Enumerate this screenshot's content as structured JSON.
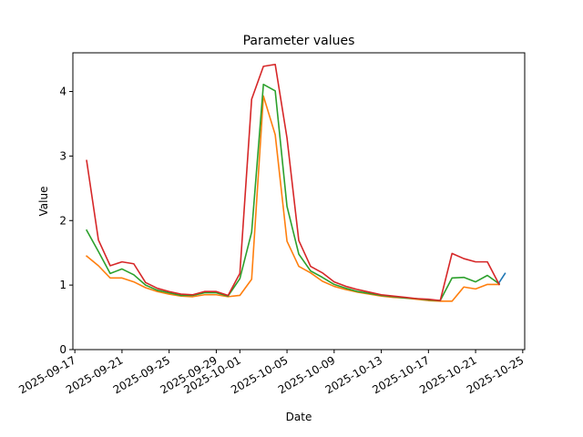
{
  "chart_data": {
    "type": "line",
    "title": "Parameter values",
    "xlabel": "Date",
    "ylabel": "Value",
    "ylim": [
      0,
      4.6
    ],
    "xlim": [
      "2025-09-16T20:00",
      "2025-10-25T04:00"
    ],
    "yticks": [
      0,
      1,
      2,
      3,
      4
    ],
    "xticks": [
      "2025-09-17",
      "2025-09-21",
      "2025-09-25",
      "2025-09-29",
      "2025-10-01",
      "2025-10-05",
      "2025-10-09",
      "2025-10-13",
      "2025-10-17",
      "2025-10-21",
      "2025-10-25"
    ],
    "grid": false,
    "legend": false,
    "series": [
      {
        "color": "#1f77b4",
        "x": [
          "2025-10-23",
          "2025-10-23T12:00"
        ],
        "y": [
          1.04,
          1.18
        ]
      },
      {
        "color": "#ff7f0e",
        "x": [
          "2025-09-18",
          "2025-09-19",
          "2025-09-20",
          "2025-09-21",
          "2025-09-22",
          "2025-09-23",
          "2025-09-24",
          "2025-09-25",
          "2025-09-26",
          "2025-09-27",
          "2025-09-28",
          "2025-09-29",
          "2025-09-30",
          "2025-10-01",
          "2025-10-02",
          "2025-10-03",
          "2025-10-04",
          "2025-10-05",
          "2025-10-06",
          "2025-10-07",
          "2025-10-08",
          "2025-10-09",
          "2025-10-10",
          "2025-10-11",
          "2025-10-12",
          "2025-10-13",
          "2025-10-14",
          "2025-10-15",
          "2025-10-16",
          "2025-10-17",
          "2025-10-18",
          "2025-10-19",
          "2025-10-20",
          "2025-10-21",
          "2025-10-22",
          "2025-10-23"
        ],
        "y": [
          1.45,
          1.3,
          1.11,
          1.11,
          1.05,
          0.96,
          0.9,
          0.86,
          0.83,
          0.82,
          0.85,
          0.85,
          0.82,
          0.84,
          1.09,
          3.93,
          3.33,
          1.68,
          1.29,
          1.19,
          1.06,
          0.98,
          0.93,
          0.89,
          0.86,
          0.83,
          0.81,
          0.8,
          0.78,
          0.76,
          0.75,
          0.75,
          0.97,
          0.94,
          1.01,
          1.01
        ]
      },
      {
        "color": "#2ca02c",
        "x": [
          "2025-09-18",
          "2025-09-19",
          "2025-09-20",
          "2025-09-21",
          "2025-09-22",
          "2025-09-23",
          "2025-09-24",
          "2025-09-25",
          "2025-09-26",
          "2025-09-27",
          "2025-09-28",
          "2025-09-29",
          "2025-09-30",
          "2025-10-01",
          "2025-10-02",
          "2025-10-03",
          "2025-10-04",
          "2025-10-05",
          "2025-10-06",
          "2025-10-07",
          "2025-10-08",
          "2025-10-09",
          "2025-10-10",
          "2025-10-11",
          "2025-10-12",
          "2025-10-13",
          "2025-10-14",
          "2025-10-15",
          "2025-10-16",
          "2025-10-17",
          "2025-10-18",
          "2025-10-19",
          "2025-10-20",
          "2025-10-21",
          "2025-10-22",
          "2025-10-23"
        ],
        "y": [
          1.85,
          1.52,
          1.18,
          1.25,
          1.16,
          1.0,
          0.92,
          0.88,
          0.84,
          0.84,
          0.88,
          0.88,
          0.83,
          1.1,
          1.82,
          4.11,
          4.01,
          2.22,
          1.48,
          1.22,
          1.12,
          1.01,
          0.95,
          0.9,
          0.87,
          0.84,
          0.82,
          0.8,
          0.79,
          0.77,
          0.76,
          1.11,
          1.12,
          1.05,
          1.15,
          1.02
        ]
      },
      {
        "color": "#d62728",
        "x": [
          "2025-09-18",
          "2025-09-19",
          "2025-09-20",
          "2025-09-21",
          "2025-09-22",
          "2025-09-23",
          "2025-09-24",
          "2025-09-25",
          "2025-09-26",
          "2025-09-27",
          "2025-09-28",
          "2025-09-29",
          "2025-09-30",
          "2025-10-01",
          "2025-10-02",
          "2025-10-03",
          "2025-10-04",
          "2025-10-05",
          "2025-10-06",
          "2025-10-07",
          "2025-10-08",
          "2025-10-09",
          "2025-10-10",
          "2025-10-11",
          "2025-10-12",
          "2025-10-13",
          "2025-10-14",
          "2025-10-15",
          "2025-10-16",
          "2025-10-17",
          "2025-10-18",
          "2025-10-19",
          "2025-10-20",
          "2025-10-21",
          "2025-10-22",
          "2025-10-23"
        ],
        "y": [
          2.93,
          1.7,
          1.3,
          1.36,
          1.33,
          1.04,
          0.95,
          0.9,
          0.86,
          0.85,
          0.9,
          0.9,
          0.84,
          1.18,
          3.88,
          4.39,
          4.42,
          3.28,
          1.69,
          1.29,
          1.19,
          1.05,
          0.98,
          0.93,
          0.89,
          0.85,
          0.83,
          0.81,
          0.79,
          0.78,
          0.76,
          1.49,
          1.41,
          1.36,
          1.36,
          1.01
        ]
      }
    ]
  }
}
